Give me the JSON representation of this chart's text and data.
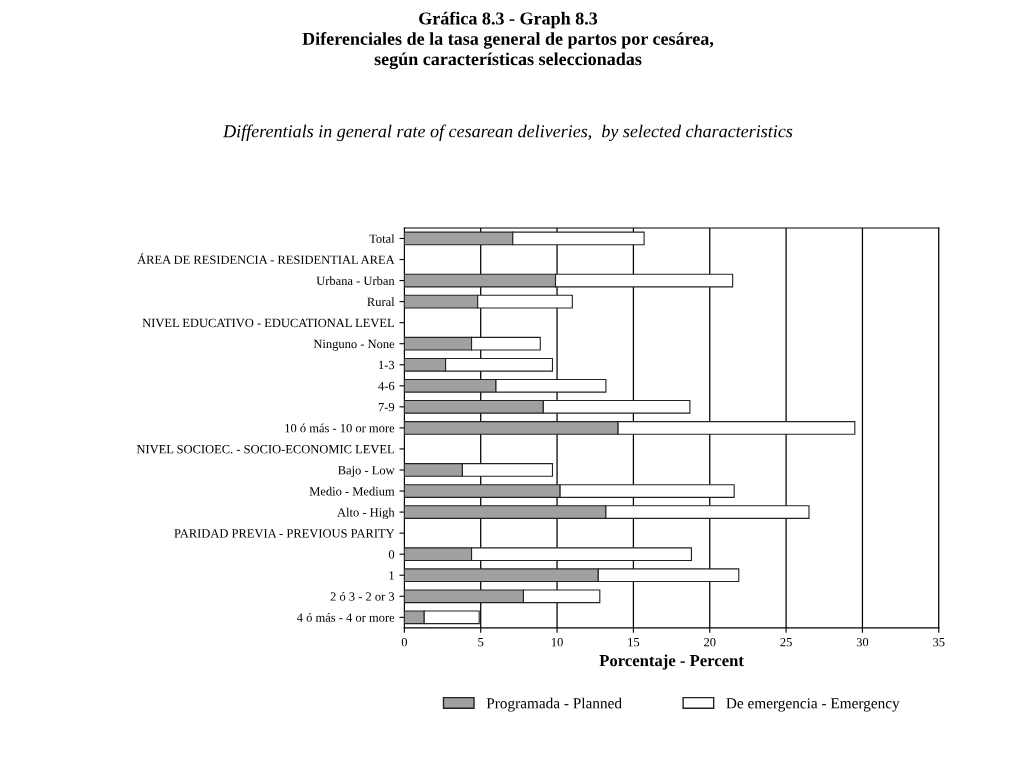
{
  "chart_data": {
    "type": "bar",
    "orientation": "horizontal",
    "stacked": true,
    "title": "Gráfica 8.3 - Graph 8.3\nDiferenciales de la tasa general de partos por cesárea,\nsegún características seleccionadas",
    "subtitle": "Differentials in general rate of cesarean deliveries,  by selected characteristics",
    "xlabel": "Porcentaje - Percent",
    "categories": [
      "Total",
      "ÁREA DE RESIDENCIA - RESIDENTIAL AREA",
      "Urbana - Urban",
      "Rural",
      "NIVEL EDUCATIVO - EDUCATIONAL LEVEL",
      "Ninguno - None",
      "1-3",
      "4-6",
      "7-9",
      "10 ó más - 10 or more",
      "NIVEL SOCIOEC. - SOCIO-ECONOMIC LEVEL",
      "Bajo - Low",
      "Medio - Medium",
      "Alto - High",
      "PARIDAD PREVIA - PREVIOUS PARITY",
      "0",
      "1",
      "2 ó 3 - 2 or 3",
      "4 ó más - 4 or more"
    ],
    "series": [
      {
        "name": "Programada - Planned",
        "color": "#a0a0a0",
        "values": [
          7.1,
          null,
          9.9,
          4.8,
          null,
          4.4,
          2.7,
          6.0,
          9.1,
          14.0,
          null,
          3.8,
          10.2,
          13.2,
          null,
          4.4,
          12.7,
          7.8,
          1.3
        ]
      },
      {
        "name": "De emergencia - Emergency",
        "color": "#ffffff",
        "values": [
          8.6,
          null,
          11.6,
          6.2,
          null,
          4.5,
          7.0,
          7.2,
          9.6,
          15.5,
          null,
          5.9,
          11.4,
          13.3,
          null,
          14.4,
          9.2,
          5.0,
          3.6
        ]
      }
    ],
    "xlim": [
      0,
      35
    ],
    "xticks": [
      0,
      5,
      10,
      15,
      20,
      25,
      30,
      35
    ],
    "grid": "x",
    "legend": "bottom"
  }
}
